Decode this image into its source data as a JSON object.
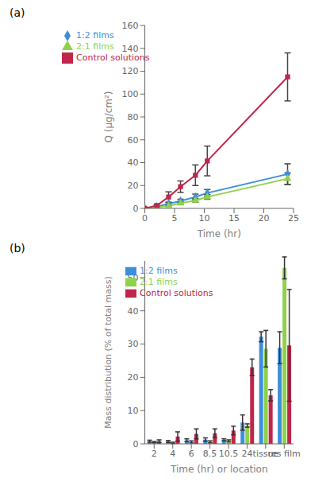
{
  "chart_data": [
    {
      "type": "line",
      "title": "(a)",
      "x_label": "Time (hr)",
      "y_label": "Q (μg/cm²)",
      "x": [
        0,
        2,
        4,
        6,
        8.5,
        10.5,
        24
      ],
      "xlim": [
        0,
        25
      ],
      "xticks": [
        0,
        5,
        10,
        15,
        20,
        25
      ],
      "ylim": [
        0,
        160
      ],
      "yticks": [
        0,
        20,
        40,
        60,
        80,
        100,
        120,
        140,
        160
      ],
      "grid": false,
      "legend": "upper left",
      "series": [
        {
          "name": "1:2 films",
          "color": "#3d8fd9",
          "marker": "diamond",
          "values": [
            0,
            1.5,
            4,
            6.5,
            10,
            13.5,
            30
          ],
          "errors": [
            0,
            0.5,
            1,
            1.5,
            2.5,
            3,
            9
          ]
        },
        {
          "name": "2:1 films",
          "color": "#8fd14a",
          "marker": "triangle",
          "values": [
            0,
            1,
            2,
            4.5,
            7,
            10,
            26
          ],
          "errors": [
            0,
            0.3,
            0.8,
            1.2,
            1.5,
            2,
            5
          ]
        },
        {
          "name": "Control solutions",
          "color": "#c0264b",
          "marker": "square",
          "values": [
            0,
            2.5,
            10,
            19,
            29,
            41.5,
            115
          ],
          "errors": [
            0,
            1,
            4.5,
            5,
            9,
            13,
            21
          ]
        }
      ]
    },
    {
      "type": "bar",
      "title": "(b)",
      "x_label": "Time (hr) or location",
      "y_label": "Mass distribution (% of total mass)",
      "categories": [
        "2",
        "4",
        "6",
        "8.5",
        "10.5",
        "24",
        "tissue",
        "res film"
      ],
      "ylim": [
        0,
        55
      ],
      "yticks": [
        0,
        10,
        20,
        30,
        40,
        50
      ],
      "grid": false,
      "legend": "upper center",
      "series": [
        {
          "name": "1:2 films",
          "color": "#3d8fd9",
          "values": [
            0.8,
            0.7,
            1.1,
            1.3,
            1.2,
            6.4,
            32.2,
            28.9
          ],
          "errors": [
            0.3,
            0.3,
            0.4,
            0.5,
            0.3,
            2.3,
            1.5,
            4.8
          ]
        },
        {
          "name": "2:1 films",
          "color": "#8fd14a",
          "values": [
            0.5,
            0.3,
            0.6,
            0.6,
            0.9,
            5.5,
            28.6,
            52.9
          ],
          "errors": [
            0.2,
            0.2,
            0.3,
            0.3,
            0.3,
            0.5,
            5.5,
            3.3
          ]
        },
        {
          "name": "Control solutions",
          "color": "#c0264b",
          "values": [
            0.8,
            2.2,
            3,
            3.2,
            4,
            23,
            14.6,
            29.6
          ],
          "errors": [
            0.4,
            1.4,
            1.5,
            1.3,
            1.3,
            2.5,
            1.7,
            16.8
          ]
        }
      ]
    }
  ]
}
